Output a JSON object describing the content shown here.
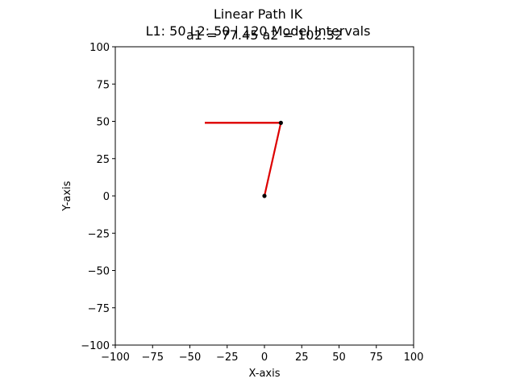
{
  "chart_data": {
    "type": "line",
    "title_lines": [
      "Linear Path IK",
      "L1: 50 L2: 50 | 120 Model Intervals"
    ],
    "subtitle": "a1 = 77.45 a2 = 102.32",
    "xlabel": "X-axis",
    "ylabel": "Y-axis",
    "xlim": [
      -100,
      100
    ],
    "ylim": [
      -100,
      100
    ],
    "xticks": [
      -100,
      -75,
      -50,
      -25,
      0,
      25,
      50,
      75,
      100
    ],
    "yticks": [
      -100,
      -75,
      -50,
      -25,
      0,
      25,
      50,
      75,
      100
    ],
    "grid": false,
    "series": [
      {
        "kind": "path",
        "x": [
          -40,
          11
        ],
        "y": [
          49,
          49
        ]
      },
      {
        "kind": "arm",
        "x": [
          0,
          11,
          -40
        ],
        "y": [
          0,
          49,
          49
        ]
      }
    ],
    "joints": [
      {
        "x": 0,
        "y": 0
      },
      {
        "x": 11,
        "y": 49
      }
    ],
    "colors": {
      "arm": "#dd0000",
      "joint": "#000000",
      "axes": "#000000"
    }
  }
}
